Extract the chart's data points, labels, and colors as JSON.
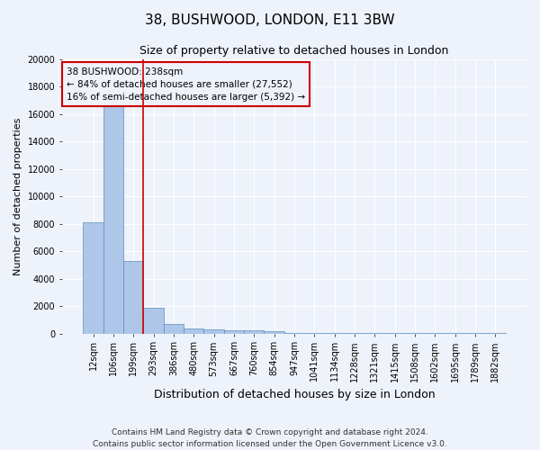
{
  "title": "38, BUSHWOOD, LONDON, E11 3BW",
  "subtitle": "Size of property relative to detached houses in London",
  "xlabel": "Distribution of detached houses by size in London",
  "ylabel": "Number of detached properties",
  "categories": [
    "12sqm",
    "106sqm",
    "199sqm",
    "293sqm",
    "386sqm",
    "480sqm",
    "573sqm",
    "667sqm",
    "760sqm",
    "854sqm",
    "947sqm",
    "1041sqm",
    "1134sqm",
    "1228sqm",
    "1321sqm",
    "1415sqm",
    "1508sqm",
    "1602sqm",
    "1695sqm",
    "1789sqm",
    "1882sqm"
  ],
  "values": [
    8100,
    16600,
    5300,
    1850,
    700,
    370,
    270,
    220,
    200,
    170,
    60,
    40,
    30,
    20,
    15,
    10,
    8,
    6,
    5,
    4,
    3
  ],
  "bar_color": "#aec6e8",
  "bar_edge_color": "#5a8fc0",
  "vline_color": "#cc0000",
  "annotation_text": "38 BUSHWOOD: 238sqm\n← 84% of detached houses are smaller (27,552)\n16% of semi-detached houses are larger (5,392) →",
  "annotation_box_color": "#cc0000",
  "ylim": [
    0,
    20000
  ],
  "yticks": [
    0,
    2000,
    4000,
    6000,
    8000,
    10000,
    12000,
    14000,
    16000,
    18000,
    20000
  ],
  "footnote": "Contains HM Land Registry data © Crown copyright and database right 2024.\nContains public sector information licensed under the Open Government Licence v3.0.",
  "bg_color": "#eef2fa",
  "grid_color": "#ffffff",
  "title_fontsize": 11,
  "subtitle_fontsize": 9,
  "xlabel_fontsize": 9,
  "ylabel_fontsize": 8,
  "tick_fontsize": 7,
  "annotation_fontsize": 7.5,
  "footnote_fontsize": 6.5
}
